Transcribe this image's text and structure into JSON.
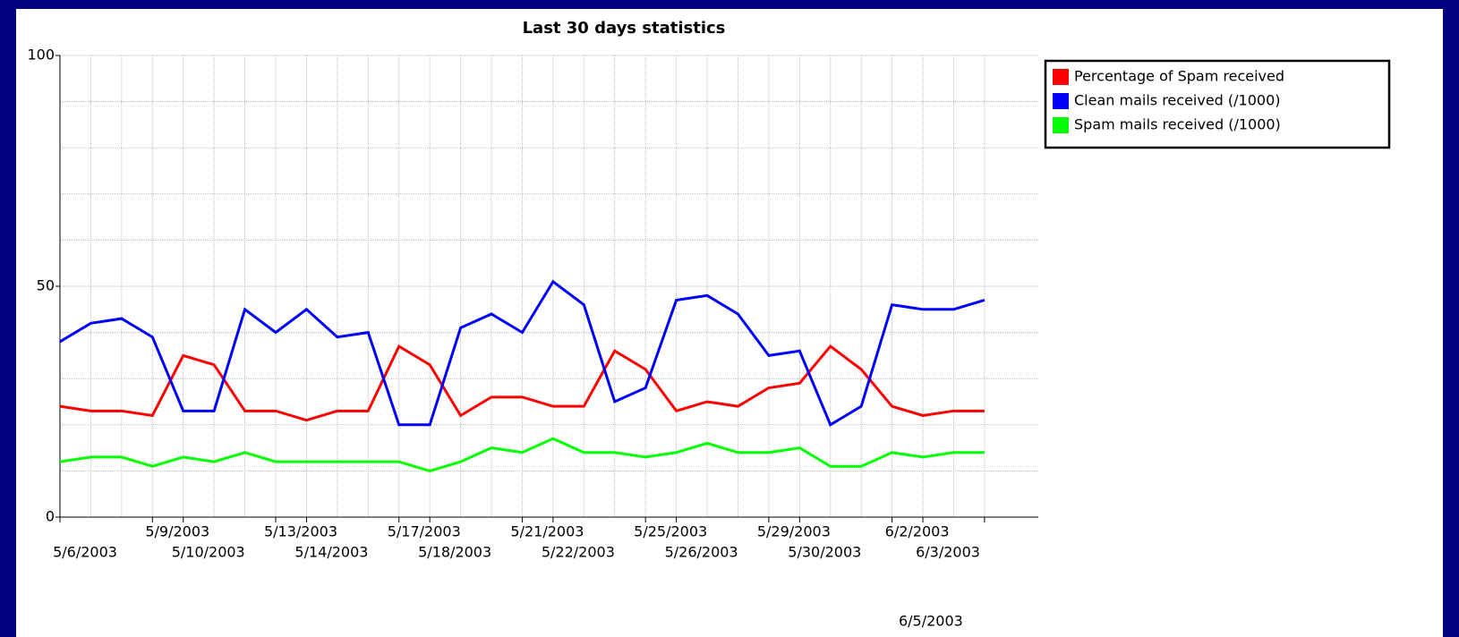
{
  "chart_data": {
    "type": "line",
    "title": "Last 30 days statistics",
    "categories": [
      "5/6/2003",
      null,
      null,
      "5/9/2003",
      "5/10/2003",
      null,
      null,
      "5/13/2003",
      "5/14/2003",
      null,
      null,
      "5/17/2003",
      "5/18/2003",
      null,
      null,
      "5/21/2003",
      "5/22/2003",
      null,
      null,
      "5/25/2003",
      "5/26/2003",
      null,
      null,
      "5/29/2003",
      "5/30/2003",
      null,
      null,
      "6/2/2003",
      "6/3/2003",
      null,
      "6/5/2003"
    ],
    "series": [
      {
        "name": "Percentage of Spam received",
        "color": "#ff0000",
        "values": [
          24,
          23,
          23,
          22,
          35,
          33,
          23,
          23,
          21,
          23,
          23,
          37,
          33,
          22,
          26,
          26,
          24,
          24,
          36,
          32,
          23,
          25,
          24,
          28,
          29,
          37,
          32,
          24,
          22,
          23,
          23
        ]
      },
      {
        "name": "Clean mails received (/1000)",
        "color": "#0000ff",
        "values": [
          38,
          42,
          43,
          39,
          23,
          23,
          45,
          40,
          45,
          39,
          40,
          20,
          20,
          41,
          44,
          40,
          51,
          46,
          25,
          28,
          47,
          48,
          44,
          35,
          36,
          20,
          24,
          46,
          45,
          45,
          47
        ]
      },
      {
        "name": "Spam mails received (/1000)",
        "color": "#00ff00",
        "values": [
          12,
          13,
          13,
          11,
          13,
          12,
          14,
          12,
          12,
          12,
          12,
          12,
          10,
          12,
          15,
          14,
          17,
          14,
          14,
          13,
          14,
          16,
          14,
          14,
          15,
          11,
          11,
          14,
          13,
          14,
          14
        ]
      }
    ],
    "ylim": [
      0,
      100
    ],
    "yticks": [
      0,
      50,
      100
    ],
    "ygrid": [
      10,
      20,
      30,
      40,
      50,
      60,
      70,
      80,
      90,
      100
    ],
    "grid": true,
    "legend": "top-right"
  }
}
